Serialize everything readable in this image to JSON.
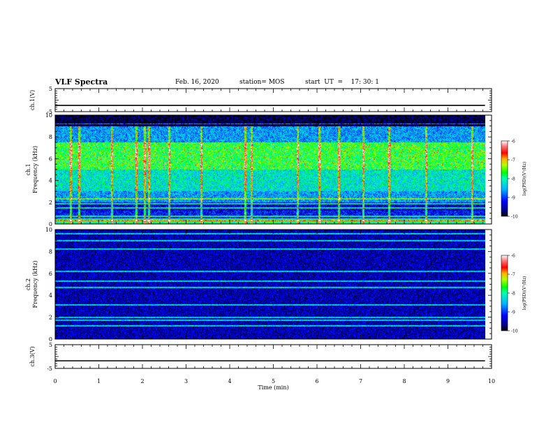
{
  "header": {
    "title": "VLF Spectra",
    "date": "Feb. 16, 2020",
    "station": "station= MOS",
    "start": "start  UT  =    17: 30: 1"
  },
  "chart_data": [
    {
      "type": "line",
      "panel": "ch1-waveform",
      "ylabel": "ch.1(V)",
      "ylim": [
        -5,
        5
      ],
      "ytick_labels": [
        "5",
        "-5"
      ],
      "x": [
        0,
        9.85
      ],
      "series": [
        {
          "values": [
            -2.3,
            -2.3
          ]
        }
      ],
      "color": "#000000"
    },
    {
      "type": "heatmap",
      "panel": "ch1-spectrogram",
      "ylabel": "ch.1\nFrequency  (kHz)",
      "ylim": [
        0,
        10
      ],
      "xlim": [
        0,
        10
      ],
      "ytick_labels": [
        "0",
        "2",
        "4",
        "6",
        "8",
        "10"
      ],
      "colorbar": {
        "label": "log(PSD)(V²/Hz)",
        "range": [
          -10,
          -6
        ],
        "tick_labels": [
          "-6",
          "-7",
          "-8",
          "-9",
          "-10"
        ]
      },
      "data_extent_x": [
        0,
        9.85
      ],
      "band_levels": [
        {
          "f_min": 0.0,
          "f_max": 0.5,
          "level": -7.9
        },
        {
          "f_min": 0.5,
          "f_max": 1.2,
          "level": -9.2
        },
        {
          "f_min": 1.2,
          "f_max": 2.0,
          "level": -9.4
        },
        {
          "f_min": 2.0,
          "f_max": 3.0,
          "level": -8.6
        },
        {
          "f_min": 3.0,
          "f_max": 5.0,
          "level": -8.2
        },
        {
          "f_min": 5.0,
          "f_max": 7.5,
          "level": -7.7
        },
        {
          "f_min": 7.5,
          "f_max": 9.0,
          "level": -8.6
        },
        {
          "f_min": 9.0,
          "f_max": 10.0,
          "level": -9.9
        }
      ],
      "spectral_lines_khz": [
        0.3,
        0.7,
        1.5,
        1.85,
        2.3,
        9.2
      ],
      "broadband_burst_times_min": [
        0.35,
        0.55,
        1.3,
        1.85,
        2.05,
        2.15,
        2.6,
        3.35,
        4.35,
        4.5,
        5.55,
        6.05,
        6.5,
        7.05,
        7.65,
        8.5,
        9.55
      ]
    },
    {
      "type": "heatmap",
      "panel": "ch2-spectrogram",
      "ylabel": "ch.2\nFrequency  (kHz)",
      "ylim": [
        0,
        10
      ],
      "xlim": [
        0,
        10
      ],
      "ytick_labels": [
        "0",
        "2",
        "4",
        "6",
        "8",
        "10"
      ],
      "colorbar": {
        "label": "log(PSD)(V²/Hz)",
        "range": [
          -10,
          -6
        ],
        "tick_labels": [
          "-6",
          "-7",
          "-8",
          "-9",
          "-10"
        ]
      },
      "data_extent_x": [
        0,
        9.85
      ],
      "background_level": -9.5,
      "spectral_lines_khz": [
        1.2,
        1.7,
        2.0,
        3.1,
        4.7,
        5.3,
        6.2,
        8.2,
        9.0,
        9.6
      ]
    },
    {
      "type": "line",
      "panel": "ch3-waveform",
      "ylabel": "ch.3(V)",
      "ylim": [
        -5,
        5
      ],
      "ytick_labels": [
        "5",
        "-5"
      ],
      "x": [
        0,
        9.85
      ],
      "series": [
        {
          "values": [
            -1.8,
            -1.8
          ]
        }
      ],
      "color": "#000000"
    }
  ],
  "xaxis": {
    "label": "Time  (min)",
    "lim": [
      0,
      10
    ],
    "tick_labels": [
      "0",
      "1",
      "2",
      "3",
      "4",
      "5",
      "6",
      "7",
      "8",
      "9",
      "10"
    ]
  }
}
